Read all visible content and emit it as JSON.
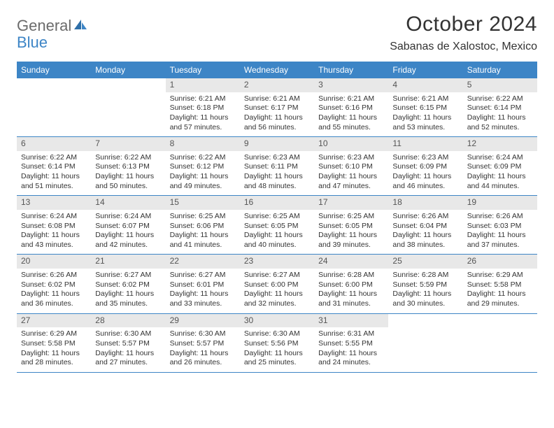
{
  "logo": {
    "word1": "General",
    "word2": "Blue"
  },
  "title": "October 2024",
  "location": "Sabanas de Xalostoc, Mexico",
  "colors": {
    "header_bg": "#3d85c6",
    "header_text": "#ffffff",
    "daynum_bg": "#e8e8e8",
    "rule": "#3d85c6",
    "text": "#333333",
    "page_bg": "#ffffff"
  },
  "typography": {
    "title_fontsize": 30,
    "location_fontsize": 16,
    "dow_fontsize": 12,
    "daynum_fontsize": 12,
    "body_fontsize": 10.5
  },
  "layout": {
    "cols": 7,
    "rows": 5,
    "leading_blanks": 2,
    "trailing_blanks": 2
  },
  "days_of_week": [
    "Sunday",
    "Monday",
    "Tuesday",
    "Wednesday",
    "Thursday",
    "Friday",
    "Saturday"
  ],
  "days": [
    {
      "n": "1",
      "sunrise": "Sunrise: 6:21 AM",
      "sunset": "Sunset: 6:18 PM",
      "daylight": "Daylight: 11 hours and 57 minutes."
    },
    {
      "n": "2",
      "sunrise": "Sunrise: 6:21 AM",
      "sunset": "Sunset: 6:17 PM",
      "daylight": "Daylight: 11 hours and 56 minutes."
    },
    {
      "n": "3",
      "sunrise": "Sunrise: 6:21 AM",
      "sunset": "Sunset: 6:16 PM",
      "daylight": "Daylight: 11 hours and 55 minutes."
    },
    {
      "n": "4",
      "sunrise": "Sunrise: 6:21 AM",
      "sunset": "Sunset: 6:15 PM",
      "daylight": "Daylight: 11 hours and 53 minutes."
    },
    {
      "n": "5",
      "sunrise": "Sunrise: 6:22 AM",
      "sunset": "Sunset: 6:14 PM",
      "daylight": "Daylight: 11 hours and 52 minutes."
    },
    {
      "n": "6",
      "sunrise": "Sunrise: 6:22 AM",
      "sunset": "Sunset: 6:14 PM",
      "daylight": "Daylight: 11 hours and 51 minutes."
    },
    {
      "n": "7",
      "sunrise": "Sunrise: 6:22 AM",
      "sunset": "Sunset: 6:13 PM",
      "daylight": "Daylight: 11 hours and 50 minutes."
    },
    {
      "n": "8",
      "sunrise": "Sunrise: 6:22 AM",
      "sunset": "Sunset: 6:12 PM",
      "daylight": "Daylight: 11 hours and 49 minutes."
    },
    {
      "n": "9",
      "sunrise": "Sunrise: 6:23 AM",
      "sunset": "Sunset: 6:11 PM",
      "daylight": "Daylight: 11 hours and 48 minutes."
    },
    {
      "n": "10",
      "sunrise": "Sunrise: 6:23 AM",
      "sunset": "Sunset: 6:10 PM",
      "daylight": "Daylight: 11 hours and 47 minutes."
    },
    {
      "n": "11",
      "sunrise": "Sunrise: 6:23 AM",
      "sunset": "Sunset: 6:09 PM",
      "daylight": "Daylight: 11 hours and 46 minutes."
    },
    {
      "n": "12",
      "sunrise": "Sunrise: 6:24 AM",
      "sunset": "Sunset: 6:09 PM",
      "daylight": "Daylight: 11 hours and 44 minutes."
    },
    {
      "n": "13",
      "sunrise": "Sunrise: 6:24 AM",
      "sunset": "Sunset: 6:08 PM",
      "daylight": "Daylight: 11 hours and 43 minutes."
    },
    {
      "n": "14",
      "sunrise": "Sunrise: 6:24 AM",
      "sunset": "Sunset: 6:07 PM",
      "daylight": "Daylight: 11 hours and 42 minutes."
    },
    {
      "n": "15",
      "sunrise": "Sunrise: 6:25 AM",
      "sunset": "Sunset: 6:06 PM",
      "daylight": "Daylight: 11 hours and 41 minutes."
    },
    {
      "n": "16",
      "sunrise": "Sunrise: 6:25 AM",
      "sunset": "Sunset: 6:05 PM",
      "daylight": "Daylight: 11 hours and 40 minutes."
    },
    {
      "n": "17",
      "sunrise": "Sunrise: 6:25 AM",
      "sunset": "Sunset: 6:05 PM",
      "daylight": "Daylight: 11 hours and 39 minutes."
    },
    {
      "n": "18",
      "sunrise": "Sunrise: 6:26 AM",
      "sunset": "Sunset: 6:04 PM",
      "daylight": "Daylight: 11 hours and 38 minutes."
    },
    {
      "n": "19",
      "sunrise": "Sunrise: 6:26 AM",
      "sunset": "Sunset: 6:03 PM",
      "daylight": "Daylight: 11 hours and 37 minutes."
    },
    {
      "n": "20",
      "sunrise": "Sunrise: 6:26 AM",
      "sunset": "Sunset: 6:02 PM",
      "daylight": "Daylight: 11 hours and 36 minutes."
    },
    {
      "n": "21",
      "sunrise": "Sunrise: 6:27 AM",
      "sunset": "Sunset: 6:02 PM",
      "daylight": "Daylight: 11 hours and 35 minutes."
    },
    {
      "n": "22",
      "sunrise": "Sunrise: 6:27 AM",
      "sunset": "Sunset: 6:01 PM",
      "daylight": "Daylight: 11 hours and 33 minutes."
    },
    {
      "n": "23",
      "sunrise": "Sunrise: 6:27 AM",
      "sunset": "Sunset: 6:00 PM",
      "daylight": "Daylight: 11 hours and 32 minutes."
    },
    {
      "n": "24",
      "sunrise": "Sunrise: 6:28 AM",
      "sunset": "Sunset: 6:00 PM",
      "daylight": "Daylight: 11 hours and 31 minutes."
    },
    {
      "n": "25",
      "sunrise": "Sunrise: 6:28 AM",
      "sunset": "Sunset: 5:59 PM",
      "daylight": "Daylight: 11 hours and 30 minutes."
    },
    {
      "n": "26",
      "sunrise": "Sunrise: 6:29 AM",
      "sunset": "Sunset: 5:58 PM",
      "daylight": "Daylight: 11 hours and 29 minutes."
    },
    {
      "n": "27",
      "sunrise": "Sunrise: 6:29 AM",
      "sunset": "Sunset: 5:58 PM",
      "daylight": "Daylight: 11 hours and 28 minutes."
    },
    {
      "n": "28",
      "sunrise": "Sunrise: 6:30 AM",
      "sunset": "Sunset: 5:57 PM",
      "daylight": "Daylight: 11 hours and 27 minutes."
    },
    {
      "n": "29",
      "sunrise": "Sunrise: 6:30 AM",
      "sunset": "Sunset: 5:57 PM",
      "daylight": "Daylight: 11 hours and 26 minutes."
    },
    {
      "n": "30",
      "sunrise": "Sunrise: 6:30 AM",
      "sunset": "Sunset: 5:56 PM",
      "daylight": "Daylight: 11 hours and 25 minutes."
    },
    {
      "n": "31",
      "sunrise": "Sunrise: 6:31 AM",
      "sunset": "Sunset: 5:55 PM",
      "daylight": "Daylight: 11 hours and 24 minutes."
    }
  ]
}
